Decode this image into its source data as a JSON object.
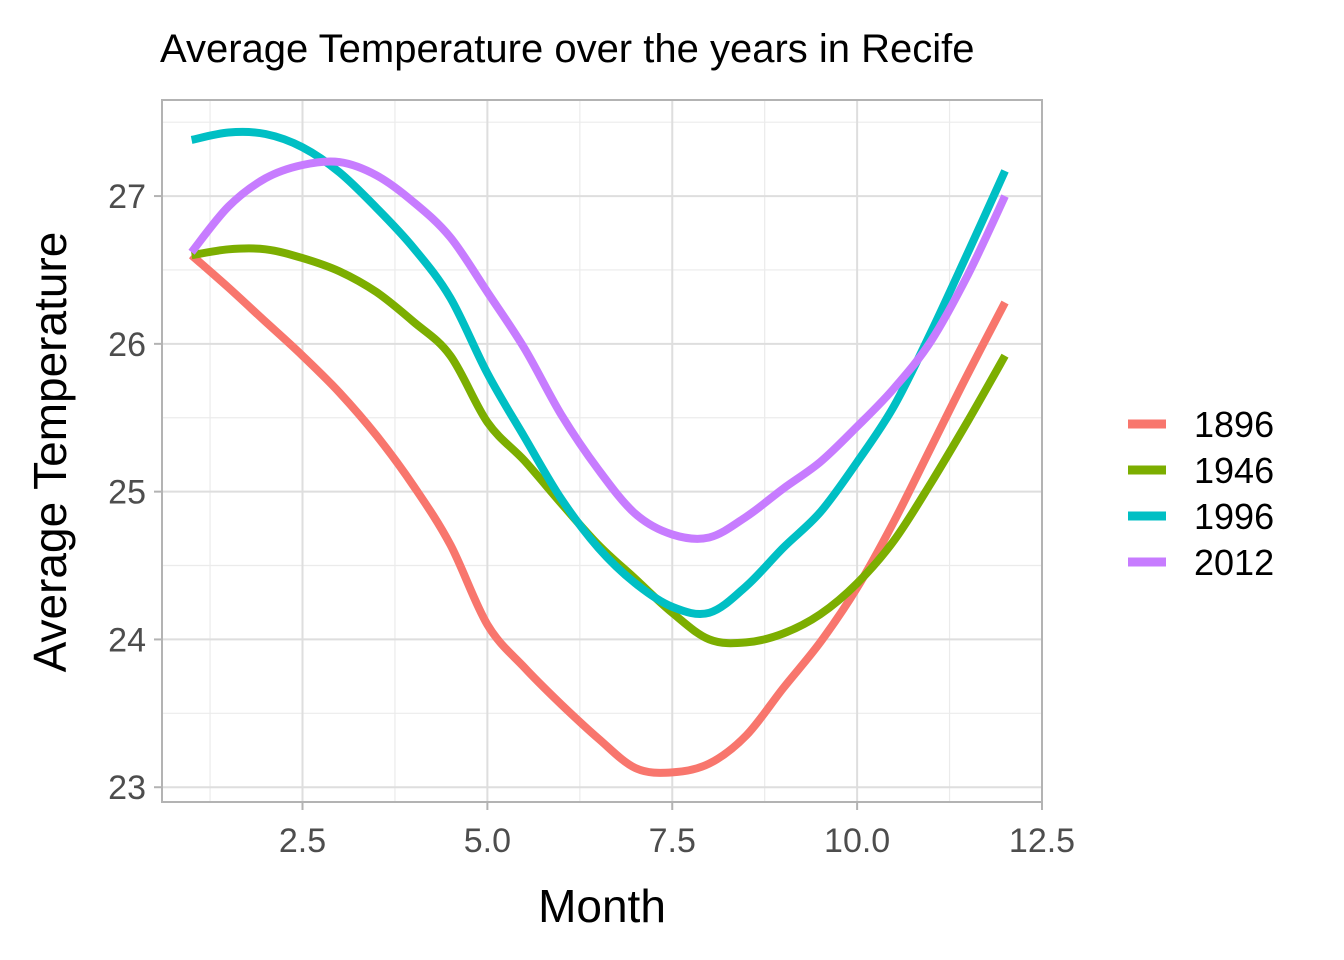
{
  "chart_data": {
    "type": "line",
    "title": "Average Temperature over the years in  Recife",
    "xlabel": "Month",
    "ylabel": "Average Temperature",
    "xlim": [
      0.6,
      12.5
    ],
    "ylim": [
      22.9,
      27.65
    ],
    "x_ticks": [
      2.5,
      5.0,
      7.5,
      10.0,
      12.5
    ],
    "x_tick_labels": [
      "2.5",
      "5.0",
      "7.5",
      "10.0",
      "12.5"
    ],
    "y_ticks": [
      23,
      24,
      25,
      26,
      27
    ],
    "y_tick_labels": [
      "23",
      "24",
      "25",
      "26",
      "27"
    ],
    "grid": true,
    "legend_position": "right",
    "x": [
      1,
      1.5,
      2,
      2.5,
      3,
      3.5,
      4,
      4.5,
      5,
      5.5,
      6,
      6.5,
      7,
      7.5,
      8,
      8.5,
      9,
      9.5,
      10,
      10.5,
      11,
      11.5,
      12
    ],
    "series": [
      {
        "name": "1896",
        "color": "#F8766D",
        "values": [
          26.6,
          26.38,
          26.15,
          25.92,
          25.67,
          25.38,
          25.04,
          24.64,
          24.1,
          23.81,
          23.56,
          23.33,
          23.13,
          23.1,
          23.16,
          23.35,
          23.67,
          23.98,
          24.35,
          24.8,
          25.3,
          25.8,
          26.28
        ]
      },
      {
        "name": "1946",
        "color": "#7CAE00",
        "values": [
          26.6,
          26.64,
          26.64,
          26.58,
          26.49,
          26.35,
          26.15,
          25.92,
          25.47,
          25.21,
          24.92,
          24.64,
          24.41,
          24.18,
          24.0,
          23.98,
          24.04,
          24.17,
          24.38,
          24.67,
          25.06,
          25.48,
          25.92
        ]
      },
      {
        "name": "1996",
        "color": "#00BFC4",
        "values": [
          27.38,
          27.43,
          27.42,
          27.33,
          27.16,
          26.92,
          26.65,
          26.31,
          25.8,
          25.37,
          24.95,
          24.62,
          24.38,
          24.22,
          24.18,
          24.36,
          24.62,
          24.86,
          25.2,
          25.58,
          26.08,
          26.62,
          27.17
        ]
      },
      {
        "name": "2012",
        "color": "#C77CFF",
        "values": [
          26.62,
          26.93,
          27.12,
          27.21,
          27.23,
          27.14,
          26.96,
          26.72,
          26.35,
          25.97,
          25.52,
          25.15,
          24.85,
          24.71,
          24.69,
          24.83,
          25.02,
          25.2,
          25.44,
          25.7,
          26.02,
          26.47,
          27.0
        ]
      }
    ]
  }
}
